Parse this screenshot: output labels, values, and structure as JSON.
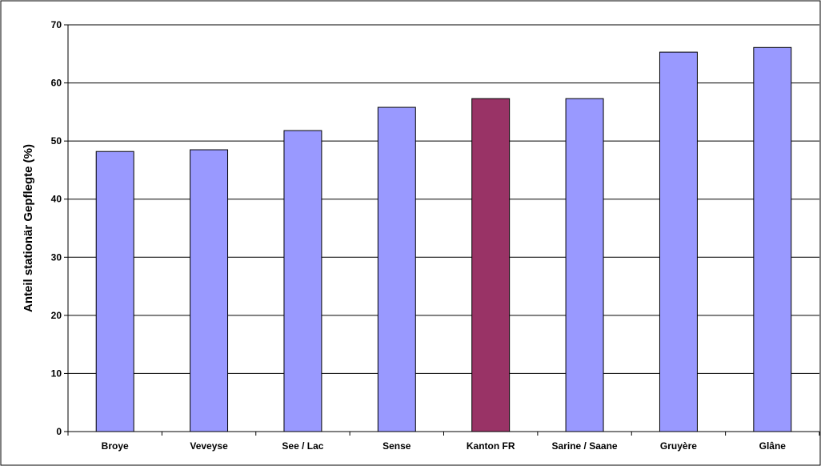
{
  "chart_data": {
    "type": "bar",
    "title": "",
    "xlabel": "",
    "ylabel": "Anteil stationär Gepflegte (%)",
    "categories": [
      "Broye",
      "Veveyse",
      "See / Lac",
      "Sense",
      "Kanton FR",
      "Sarine / Saane",
      "Gruyère",
      "Glâne"
    ],
    "values": [
      48.2,
      48.5,
      51.8,
      55.8,
      57.3,
      57.3,
      65.3,
      66.1
    ],
    "highlight_index": 4,
    "ylim": [
      0,
      70
    ],
    "yticks": [
      0,
      10,
      20,
      30,
      40,
      50,
      60,
      70
    ],
    "grid": true,
    "legend": "none",
    "colors": {
      "bar": "#9999ff",
      "highlight": "#993366",
      "gridline": "#000000",
      "axis": "#000000"
    }
  }
}
